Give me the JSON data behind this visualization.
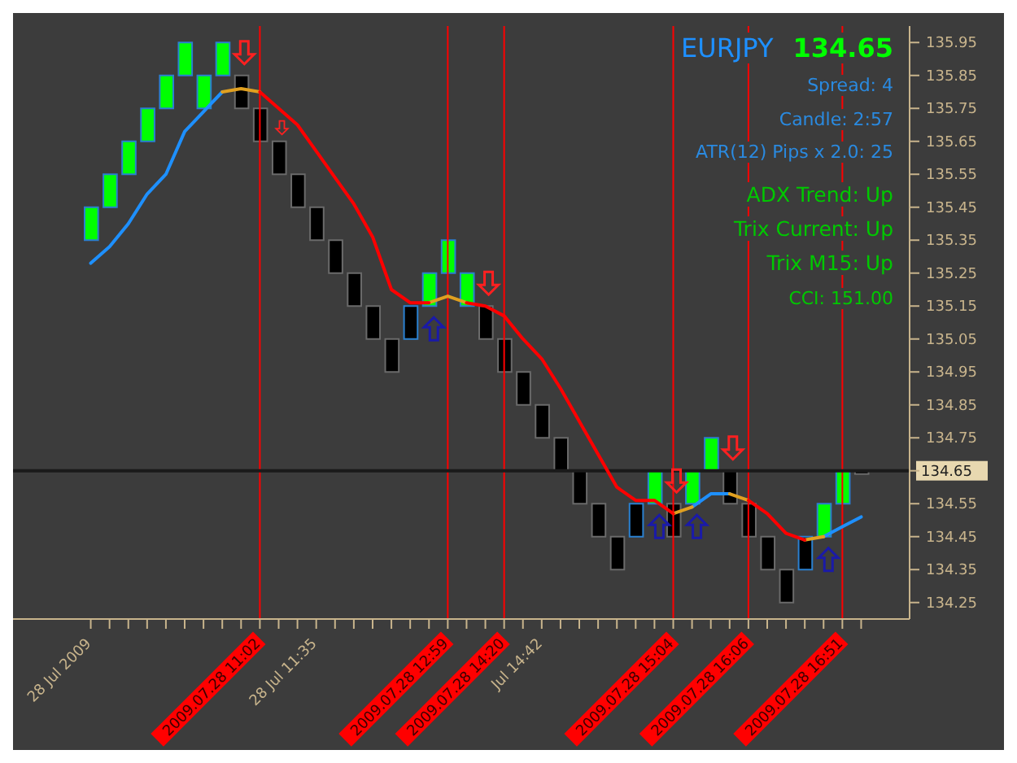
{
  "chart_data": {
    "type": "candlestick",
    "categories": [
      "28 Jul 2009",
      null,
      null,
      null,
      null,
      null,
      null,
      null,
      null,
      "2009.07.28 11:02",
      null,
      null,
      "28 Jul 11:35",
      null,
      null,
      null,
      null,
      null,
      null,
      "2009.07.28 12:59",
      null,
      null,
      "2009.07.28 14:20",
      null,
      "Jul 14:42",
      null,
      null,
      null,
      null,
      null,
      null,
      "2009.07.28 15:04",
      null,
      null,
      null,
      "2009.07.28 16:06",
      null,
      null,
      null,
      null,
      "2009.07.28 16:51",
      null
    ],
    "ohlc": [
      [
        135.35,
        135.45,
        135.35,
        135.45
      ],
      [
        135.45,
        135.55,
        135.45,
        135.55
      ],
      [
        135.55,
        135.65,
        135.55,
        135.65
      ],
      [
        135.65,
        135.75,
        135.65,
        135.75
      ],
      [
        135.75,
        135.85,
        135.75,
        135.85
      ],
      [
        135.85,
        135.95,
        135.85,
        135.95
      ],
      [
        135.75,
        135.85,
        135.75,
        135.85
      ],
      [
        135.85,
        135.95,
        135.85,
        135.95
      ],
      [
        135.85,
        135.85,
        135.75,
        135.75
      ],
      [
        135.75,
        135.75,
        135.65,
        135.65
      ],
      [
        135.65,
        135.65,
        135.55,
        135.55
      ],
      [
        135.55,
        135.55,
        135.45,
        135.45
      ],
      [
        135.45,
        135.45,
        135.35,
        135.35
      ],
      [
        135.35,
        135.35,
        135.25,
        135.25
      ],
      [
        135.25,
        135.25,
        135.15,
        135.15
      ],
      [
        135.15,
        135.15,
        135.05,
        135.05
      ],
      [
        135.05,
        135.05,
        134.95,
        134.95
      ],
      [
        135.05,
        135.15,
        135.05,
        135.15
      ],
      [
        135.15,
        135.25,
        135.15,
        135.25
      ],
      [
        135.25,
        135.35,
        135.25,
        135.35
      ],
      [
        135.15,
        135.25,
        135.15,
        135.25
      ],
      [
        135.15,
        135.15,
        135.05,
        135.05
      ],
      [
        135.05,
        135.05,
        134.95,
        134.95
      ],
      [
        134.95,
        134.95,
        134.85,
        134.85
      ],
      [
        134.85,
        134.85,
        134.75,
        134.75
      ],
      [
        134.75,
        134.75,
        134.65,
        134.65
      ],
      [
        134.65,
        134.65,
        134.55,
        134.55
      ],
      [
        134.55,
        134.55,
        134.45,
        134.45
      ],
      [
        134.45,
        134.45,
        134.35,
        134.35
      ],
      [
        134.45,
        134.55,
        134.45,
        134.55
      ],
      [
        134.55,
        134.65,
        134.55,
        134.65
      ],
      [
        134.55,
        134.55,
        134.45,
        134.45
      ],
      [
        134.55,
        134.65,
        134.55,
        134.65
      ],
      [
        134.65,
        134.75,
        134.65,
        134.75
      ],
      [
        134.65,
        134.65,
        134.55,
        134.55
      ],
      [
        134.55,
        134.55,
        134.45,
        134.45
      ],
      [
        134.45,
        134.45,
        134.35,
        134.35
      ],
      [
        134.35,
        134.35,
        134.25,
        134.25
      ],
      [
        134.35,
        134.45,
        134.35,
        134.45
      ],
      [
        134.45,
        134.55,
        134.45,
        134.55
      ],
      [
        134.55,
        134.65,
        134.55,
        134.65
      ],
      [
        134.65,
        134.65,
        134.64,
        134.64
      ]
    ],
    "colors": [
      "#00ff00",
      "#00ff00",
      "#00ff00",
      "#00ff00",
      "#00ff00",
      "#00ff00",
      "#00ff00",
      "#00ff00",
      "#000000",
      "#000000",
      "#000000",
      "#000000",
      "#000000",
      "#000000",
      "#000000",
      "#000000",
      "#000000",
      "#000000",
      "#00ff00",
      "#00ff00",
      "#00ff00",
      "#000000",
      "#000000",
      "#000000",
      "#000000",
      "#000000",
      "#000000",
      "#000000",
      "#000000",
      "#000000",
      "#00ff00",
      "#000000",
      "#00ff00",
      "#00ff00",
      "#000000",
      "#000000",
      "#000000",
      "#000000",
      "#000000",
      "#00ff00",
      "#00ff00",
      "#000000"
    ],
    "series": [
      {
        "type": "line",
        "color": "#1e90ff",
        "values": [
          135.28,
          135.33,
          135.4,
          135.49,
          135.55,
          135.68,
          135.74,
          135.8,
          null,
          null,
          null,
          null,
          null,
          null,
          null,
          null,
          null,
          null,
          null,
          null,
          null,
          null,
          null,
          null,
          null,
          null,
          null,
          null,
          null,
          null,
          null,
          null,
          134.54,
          134.58,
          134.58,
          null,
          null,
          null,
          null,
          134.45,
          134.48,
          134.51
        ]
      },
      {
        "type": "line",
        "color": "#e0a020",
        "values": [
          null,
          null,
          null,
          null,
          null,
          null,
          null,
          135.8,
          135.81,
          135.8,
          null,
          null,
          null,
          null,
          null,
          null,
          null,
          null,
          135.16,
          135.18,
          135.16,
          null,
          null,
          null,
          null,
          null,
          null,
          null,
          null,
          null,
          null,
          134.52,
          134.54,
          null,
          134.58,
          134.56,
          null,
          null,
          134.44,
          134.45,
          null,
          null
        ]
      },
      {
        "type": "line",
        "color": "#ff0000",
        "values": [
          null,
          null,
          null,
          null,
          null,
          null,
          null,
          null,
          null,
          135.8,
          135.75,
          135.7,
          135.62,
          135.54,
          135.46,
          135.36,
          135.2,
          135.16,
          135.16,
          null,
          135.16,
          135.15,
          135.12,
          135.05,
          134.99,
          134.9,
          134.8,
          134.7,
          134.6,
          134.56,
          134.56,
          134.52,
          null,
          null,
          null,
          134.56,
          134.52,
          134.46,
          134.44,
          null,
          null,
          null
        ]
      }
    ],
    "ylim": [
      134.2,
      136.0
    ],
    "yticks": [
      134.25,
      134.35,
      134.45,
      134.55,
      {
        "value": 134.65,
        "label": null
      },
      134.75,
      134.85,
      134.95,
      135.05,
      135.15,
      135.25,
      135.35,
      135.45,
      135.55,
      135.65,
      135.75,
      135.85,
      135.95
    ],
    "ref_lines": [
      {
        "axis": "x",
        "value": "2009.07.28 11:02",
        "color": "#ff0000"
      },
      {
        "axis": "x",
        "value": "2009.07.28 12:59",
        "color": "#ff0000"
      },
      {
        "axis": "x",
        "value": "2009.07.28 14:20",
        "color": "#ff0000"
      },
      {
        "axis": "x",
        "value": "2009.07.28 15:04",
        "color": "#ff0000"
      },
      {
        "axis": "x",
        "value": "2009.07.28 16:06",
        "color": "#ff0000"
      },
      {
        "axis": "x",
        "value": "2009.07.28 16:51",
        "color": "#ff0000"
      },
      {
        "axis": "y",
        "value": 134.65,
        "label": "134.65",
        "color": "#1a1a1a"
      }
    ],
    "annotations": [
      "EURJPY",
      "134.65",
      "Spread:  4",
      "Candle:  2:57",
      "ATR(12) Pips x 2.0:  25",
      "ADX Trend: Up",
      "Trix Current: Up",
      "Trix M15:  Up",
      "CCI: 151.00"
    ],
    "tick_labels": "xy"
  }
}
